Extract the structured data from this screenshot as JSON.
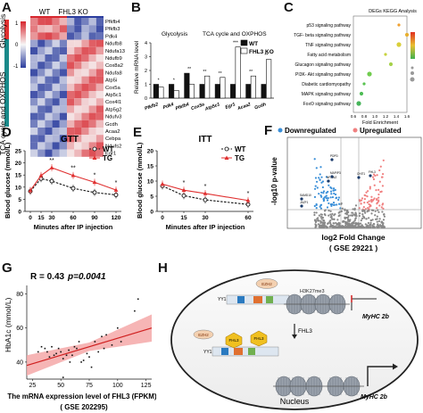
{
  "panel_labels": {
    "a": "A",
    "b": "B",
    "c": "C",
    "d": "D",
    "e": "E",
    "f": "F",
    "g": "G",
    "h": "H"
  },
  "panel_a": {
    "col_labels": [
      "WT",
      "FHL3 KO"
    ],
    "row_groups": [
      "Glycolysis",
      "TCA cycle and OXPHOS"
    ],
    "genes": [
      "Pfkfb4",
      "Pfkfb3",
      "Pdk4",
      "Ndufb8",
      "Ndufa13",
      "Ndufb9",
      "Cox8a2",
      "Ndufa8",
      "Atp5i",
      "Cox5a",
      "Atp5c1",
      "Cox4l1",
      "Atp5g2",
      "Ndufv3",
      "Gcdh",
      "Acaa2",
      "Cebpa",
      "Ndufs2",
      "Egr1"
    ],
    "scale_ticks": [
      "1",
      "0",
      "-1"
    ],
    "colors": {
      "high": "#d7262e",
      "mid": "#f7f7f7",
      "low": "#2b3d9e"
    }
  },
  "panel_b": {
    "chart_data": {
      "type": "bar",
      "ylabel": "Relative mRNA level",
      "ylim": [
        0,
        4
      ],
      "yticks": [
        "0",
        "1",
        "2",
        "3",
        "4"
      ],
      "group_titles": [
        "Glycolysis",
        "TCA cycle and OXPHOS"
      ],
      "categories": [
        "Pfkfb2",
        "Pdk4",
        "Pfkfb4",
        "Cox5a",
        "Atp5c1",
        "Egr1",
        "Acaa2",
        "Gcdh"
      ],
      "series": [
        {
          "name": "WT",
          "color": "#111111",
          "values": [
            1.0,
            1.0,
            1.8,
            1.0,
            1.0,
            1.0,
            1.0,
            1.0
          ]
        },
        {
          "name": "FHL3 KO",
          "color": "#ffffff",
          "values": [
            0.8,
            0.55,
            1.0,
            1.6,
            1.5,
            3.7,
            1.6,
            2.8
          ]
        }
      ],
      "sig": [
        "*",
        "*",
        "**",
        "**",
        "**",
        "***",
        "**",
        "**"
      ]
    }
  },
  "panel_c": {
    "chart_data": {
      "type": "scatter",
      "title": "DEGs KEGG Analysis",
      "xlabel": "Fold Enrichment",
      "xticks": [
        "0.6",
        "0.8",
        "1.0",
        "1.2",
        "1.4",
        "1.6"
      ],
      "categories": [
        "p53 signaling pathway",
        "TGF- beta signaling pathway",
        "TNF signaling pathway",
        "Fatty acid metabolism",
        "Glucagon signaling pathway",
        "PI3K- Akt signaling pathway",
        "Diabetic cardiomyopathy",
        "MAPK signaling pathway",
        "FoxO signaling pathway"
      ],
      "values": [
        1.45,
        1.6,
        1.45,
        1.2,
        1.3,
        0.9,
        0.8,
        0.75,
        0.7
      ],
      "colors": [
        "#f0a030",
        "#e8b030",
        "#d9cf3a",
        "#c8d23e",
        "#a6d24a",
        "#70cc4e",
        "#58c350",
        "#4ebc55",
        "#46b45a"
      ]
    }
  },
  "panel_d": {
    "chart_data": {
      "type": "line",
      "title": "GTT",
      "xlabel": "Minutes after IP injection",
      "ylabel": "Blood glucose (mmol/L)",
      "x": [
        0,
        15,
        30,
        60,
        90,
        120
      ],
      "ylim": [
        0,
        25
      ],
      "yticks": [
        "0",
        "5",
        "10",
        "15",
        "20",
        "25"
      ],
      "series": [
        {
          "name": "WT",
          "values": [
            8.3,
            13.5,
            12.5,
            9.5,
            7.8,
            6.8
          ],
          "color": "#111111"
        },
        {
          "name": "TG",
          "values": [
            8.6,
            14.8,
            18.0,
            14.8,
            12.0,
            8.8
          ],
          "color": "#e03030"
        }
      ],
      "sig": [
        "",
        "",
        "**",
        "**",
        "*",
        "*"
      ]
    }
  },
  "panel_e": {
    "chart_data": {
      "type": "line",
      "title": "ITT",
      "xlabel": "Minutes after IP injection",
      "ylabel": "Blood glucose (mmol/L)",
      "x": [
        0,
        15,
        30,
        60
      ],
      "ylim": [
        0,
        20
      ],
      "yticks": [
        "0",
        "5",
        "10",
        "15",
        "20"
      ],
      "series": [
        {
          "name": "WT",
          "values": [
            8.4,
            5.2,
            3.8,
            2.3
          ],
          "color": "#111111"
        },
        {
          "name": "TG",
          "values": [
            9.0,
            7.0,
            5.9,
            3.6
          ],
          "color": "#e03030"
        }
      ],
      "sig": [
        "",
        "*",
        "*",
        "*"
      ]
    }
  },
  "panel_f": {
    "chart_data": {
      "type": "scatter",
      "title": "",
      "xlabel": "log2 Fold Change",
      "xsub": "( GSE 29221 )",
      "ylabel": "-log10 p-value",
      "legend": [
        "Downregulated",
        "Upregulated"
      ],
      "colors": {
        "down": "#3a8fd8",
        "up": "#f08080",
        "ns": "#888888"
      },
      "gene_labels": [
        "PDPD",
        "SAMD10",
        "JAZF1",
        "NFKBIZ",
        "MAPIP3",
        "CHIT1",
        "FHL3"
      ]
    }
  },
  "panel_g": {
    "chart_data": {
      "type": "scatter",
      "annotation_r": "R = 0.43",
      "annotation_p": "p=0.0041",
      "xlabel": "The mRNA expression level of FHL3 (FPKM)",
      "xsub": "( GSE 202295)",
      "ylabel": "HbA1c (mmol/L)",
      "xticks": [
        "25",
        "50",
        "75",
        "100",
        "125"
      ],
      "yticks": [
        "40",
        "60",
        "80"
      ],
      "xlim": [
        20,
        130
      ],
      "ylim": [
        30,
        85
      ],
      "points": [
        [
          30,
          46
        ],
        [
          33,
          49
        ],
        [
          36,
          48
        ],
        [
          38,
          46
        ],
        [
          40,
          43
        ],
        [
          42,
          49
        ],
        [
          44,
          44
        ],
        [
          46,
          45
        ],
        [
          48,
          48
        ],
        [
          50,
          46
        ],
        [
          52,
          42
        ],
        [
          55,
          44
        ],
        [
          57,
          47
        ],
        [
          58,
          40
        ],
        [
          60,
          44
        ],
        [
          62,
          49
        ],
        [
          64,
          48
        ],
        [
          66,
          52
        ],
        [
          68,
          40
        ],
        [
          70,
          41
        ],
        [
          73,
          45
        ],
        [
          75,
          43
        ],
        [
          77,
          37
        ],
        [
          80,
          52
        ],
        [
          83,
          46
        ],
        [
          86,
          55
        ],
        [
          88,
          48
        ],
        [
          52,
          31
        ],
        [
          90,
          56
        ],
        [
          95,
          50
        ],
        [
          100,
          60
        ],
        [
          103,
          52
        ],
        [
          115,
          70
        ],
        [
          118,
          77
        ]
      ],
      "fit_line": [
        [
          20,
          38
        ],
        [
          130,
          60
        ]
      ]
    }
  },
  "panel_h": {
    "top_labels": {
      "ezh2": "EZH2",
      "yy1": "YY1",
      "mark": "H3K27me3",
      "gene": "MyHC 2b"
    },
    "arrow_label": "FHL3",
    "bottom_labels": {
      "ezh2": "EZH2",
      "yy1": "YY1",
      "fhl3a": "FHL3",
      "fhl3b": "FHL3",
      "gene": "MyHC 2b"
    },
    "nucleus_label": "Nucleus"
  }
}
